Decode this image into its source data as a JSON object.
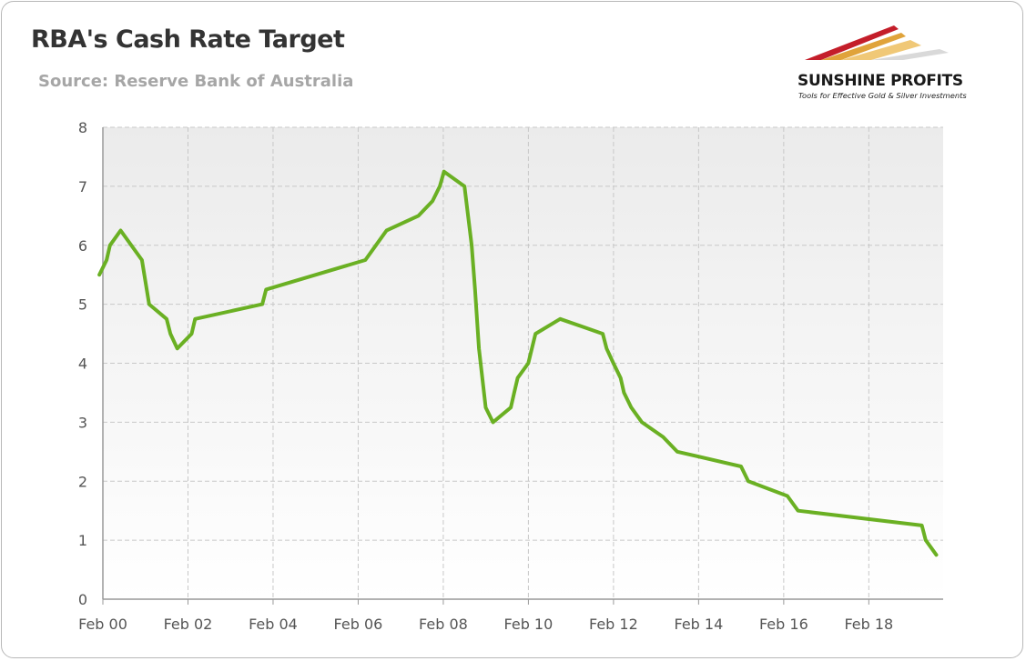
{
  "header": {
    "title": "RBA's Cash Rate Target",
    "subtitle": "Source: Reserve Bank of Australia"
  },
  "logo": {
    "name": "SUNSHINE PROFITS",
    "tagline": "Tools for Effective Gold & Silver Investments"
  },
  "colors": {
    "line": "#6ab023",
    "grid": "#c8c8c8",
    "plot_top": "#ebebeb",
    "plot_bottom": "#ffffff",
    "axis": "#999999"
  },
  "chart_data": {
    "type": "line",
    "title": "RBA's Cash Rate Target",
    "subtitle": "Source: Reserve Bank of Australia",
    "xlabel": "",
    "ylabel": "",
    "xlim": [
      2000.083,
      2019.83
    ],
    "ylim": [
      0,
      8
    ],
    "yticks": [
      0,
      1,
      2,
      3,
      4,
      5,
      6,
      7,
      8
    ],
    "xticks": [
      {
        "x": 2000.083,
        "label": "Feb 00"
      },
      {
        "x": 2002.083,
        "label": "Feb 02"
      },
      {
        "x": 2004.083,
        "label": "Feb 04"
      },
      {
        "x": 2006.083,
        "label": "Feb 06"
      },
      {
        "x": 2008.083,
        "label": "Feb 08"
      },
      {
        "x": 2010.083,
        "label": "Feb 10"
      },
      {
        "x": 2012.083,
        "label": "Feb 12"
      },
      {
        "x": 2014.083,
        "label": "Feb 14"
      },
      {
        "x": 2016.083,
        "label": "Feb 16"
      },
      {
        "x": 2018.083,
        "label": "Feb 18"
      }
    ],
    "grid": true,
    "legend": "none",
    "series": [
      {
        "points": [
          [
            2000.0,
            5.5
          ],
          [
            2000.17,
            5.75
          ],
          [
            2000.25,
            6.0
          ],
          [
            2000.5,
            6.25
          ],
          [
            2001.0,
            5.75
          ],
          [
            2001.17,
            5.0
          ],
          [
            2001.58,
            4.75
          ],
          [
            2001.67,
            4.5
          ],
          [
            2001.83,
            4.25
          ],
          [
            2002.17,
            4.5
          ],
          [
            2002.25,
            4.75
          ],
          [
            2003.83,
            5.0
          ],
          [
            2003.92,
            5.25
          ],
          [
            2006.25,
            5.75
          ],
          [
            2006.5,
            6.0
          ],
          [
            2006.75,
            6.25
          ],
          [
            2007.5,
            6.5
          ],
          [
            2007.83,
            6.75
          ],
          [
            2008.0,
            7.0
          ],
          [
            2008.1,
            7.25
          ],
          [
            2008.58,
            7.0
          ],
          [
            2008.75,
            6.0
          ],
          [
            2008.83,
            5.25
          ],
          [
            2008.92,
            4.25
          ],
          [
            2009.08,
            3.25
          ],
          [
            2009.25,
            3.0
          ],
          [
            2009.67,
            3.25
          ],
          [
            2009.75,
            3.5
          ],
          [
            2009.83,
            3.75
          ],
          [
            2010.08,
            4.0
          ],
          [
            2010.25,
            4.5
          ],
          [
            2010.83,
            4.75
          ],
          [
            2011.83,
            4.5
          ],
          [
            2011.92,
            4.25
          ],
          [
            2012.08,
            4.0
          ],
          [
            2012.25,
            3.75
          ],
          [
            2012.33,
            3.5
          ],
          [
            2012.5,
            3.25
          ],
          [
            2012.75,
            3.0
          ],
          [
            2013.25,
            2.75
          ],
          [
            2013.58,
            2.5
          ],
          [
            2015.08,
            2.25
          ],
          [
            2015.25,
            2.0
          ],
          [
            2016.17,
            1.75
          ],
          [
            2016.42,
            1.5
          ],
          [
            2019.33,
            1.25
          ],
          [
            2019.42,
            1.0
          ],
          [
            2019.67,
            0.75
          ]
        ]
      }
    ]
  }
}
